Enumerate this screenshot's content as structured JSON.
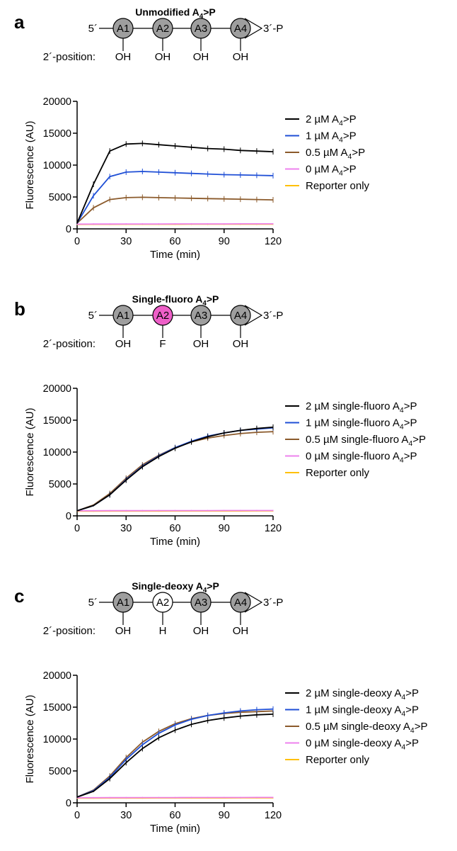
{
  "colors": {
    "2uM": "#000000",
    "1uM": "#1f4fd6",
    "0.5uM": "#8b5a2b",
    "0uM": "#ee82ee",
    "reporter": "#ffc000",
    "circle_gray": "#9e9e9e",
    "circle_pink": "#ee5fc8",
    "circle_white": "#ffffff"
  },
  "panels": [
    {
      "letter": "a",
      "title": "Unmodified A4>P",
      "molecule": {
        "five_prime": "5´",
        "three_prime": "3´-P",
        "position_label": "2´-position:",
        "nucleotides": [
          {
            "label": "A1",
            "sub": "OH",
            "fill": "gray"
          },
          {
            "label": "A2",
            "sub": "OH",
            "fill": "gray"
          },
          {
            "label": "A3",
            "sub": "OH",
            "fill": "gray"
          },
          {
            "label": "A4",
            "sub": "OH",
            "fill": "gray"
          }
        ]
      }
    },
    {
      "letter": "b",
      "title": "Single-fluoro A4>P",
      "molecule": {
        "five_prime": "5´",
        "three_prime": "3´-P",
        "position_label": "2´-position:",
        "nucleotides": [
          {
            "label": "A1",
            "sub": "OH",
            "fill": "gray"
          },
          {
            "label": "A2",
            "sub": "F",
            "fill": "pink"
          },
          {
            "label": "A3",
            "sub": "OH",
            "fill": "gray"
          },
          {
            "label": "A4",
            "sub": "OH",
            "fill": "gray"
          }
        ]
      }
    },
    {
      "letter": "c",
      "title": "Single-deoxy A4>P",
      "molecule": {
        "five_prime": "5´",
        "three_prime": "3´-P",
        "position_label": "2´-position:",
        "nucleotides": [
          {
            "label": "A1",
            "sub": "OH",
            "fill": "gray"
          },
          {
            "label": "A2",
            "sub": "H",
            "fill": "white"
          },
          {
            "label": "A3",
            "sub": "OH",
            "fill": "gray"
          },
          {
            "label": "A4",
            "sub": "OH",
            "fill": "gray"
          }
        ]
      }
    }
  ],
  "chart_data": [
    {
      "type": "line",
      "xlabel": "Time (min)",
      "ylabel": "Fluorescence (AU)",
      "xlim": [
        0,
        120
      ],
      "ylim": [
        0,
        20000
      ],
      "xticks": [
        0,
        30,
        60,
        90,
        120
      ],
      "yticks": [
        0,
        5000,
        10000,
        15000,
        20000
      ],
      "x": [
        0,
        10,
        20,
        30,
        40,
        50,
        60,
        70,
        80,
        90,
        100,
        110,
        120
      ],
      "series": [
        {
          "name": "2 µM A4>P",
          "color_key": "2uM",
          "values": [
            900,
            7000,
            12200,
            13300,
            13400,
            13200,
            13000,
            12800,
            12600,
            12500,
            12300,
            12200,
            12100
          ]
        },
        {
          "name": "1 µM A4>P",
          "color_key": "1uM",
          "values": [
            900,
            5200,
            8200,
            8900,
            9000,
            8900,
            8800,
            8700,
            8600,
            8500,
            8450,
            8400,
            8350
          ]
        },
        {
          "name": "0.5 µM A4>P",
          "color_key": "0.5uM",
          "values": [
            900,
            3300,
            4600,
            4900,
            4950,
            4900,
            4850,
            4800,
            4750,
            4700,
            4650,
            4600,
            4550
          ]
        },
        {
          "name": "0 µM A4>P",
          "color_key": "0uM",
          "values": [
            750,
            760,
            760,
            770,
            770,
            770,
            780,
            780,
            780,
            780,
            790,
            790,
            790
          ]
        },
        {
          "name": "Reporter only",
          "color_key": "reporter",
          "values": [
            700,
            710,
            710,
            720,
            720,
            720,
            720,
            730,
            730,
            730,
            730,
            730,
            730
          ]
        }
      ]
    },
    {
      "type": "line",
      "xlabel": "Time (min)",
      "ylabel": "Fluorescence (AU)",
      "xlim": [
        0,
        120
      ],
      "ylim": [
        0,
        20000
      ],
      "xticks": [
        0,
        30,
        60,
        90,
        120
      ],
      "yticks": [
        0,
        5000,
        10000,
        15000,
        20000
      ],
      "x": [
        0,
        10,
        20,
        30,
        40,
        50,
        60,
        70,
        80,
        90,
        100,
        110,
        120
      ],
      "series": [
        {
          "name": "2 µM single-fluoro A4>P",
          "color_key": "2uM",
          "values": [
            800,
            1600,
            3300,
            5600,
            7700,
            9300,
            10600,
            11600,
            12400,
            13000,
            13400,
            13700,
            13900
          ]
        },
        {
          "name": "1 µM single-fluoro A4>P",
          "color_key": "1uM",
          "values": [
            800,
            1600,
            3300,
            5700,
            7800,
            9400,
            10700,
            11700,
            12500,
            13000,
            13400,
            13600,
            13800
          ]
        },
        {
          "name": "0.5 µM single-fluoro A4>P",
          "color_key": "0.5uM",
          "values": [
            800,
            1700,
            3500,
            5900,
            8000,
            9500,
            10700,
            11600,
            12200,
            12600,
            12900,
            13100,
            13200
          ]
        },
        {
          "name": "0 µM single-fluoro A4>P",
          "color_key": "0uM",
          "values": [
            800,
            800,
            810,
            810,
            810,
            820,
            820,
            820,
            820,
            830,
            830,
            830,
            830
          ]
        },
        {
          "name": "Reporter only",
          "color_key": "reporter",
          "values": [
            750,
            750,
            760,
            760,
            760,
            760,
            770,
            770,
            770,
            770,
            770,
            780,
            780
          ]
        }
      ]
    },
    {
      "type": "line",
      "xlabel": "Time (min)",
      "ylabel": "Fluorescence (AU)",
      "xlim": [
        0,
        120
      ],
      "ylim": [
        0,
        20000
      ],
      "xticks": [
        0,
        30,
        60,
        90,
        120
      ],
      "yticks": [
        0,
        5000,
        10000,
        15000,
        20000
      ],
      "x": [
        0,
        10,
        20,
        30,
        40,
        50,
        60,
        70,
        80,
        90,
        100,
        110,
        120
      ],
      "series": [
        {
          "name": "2 µM single-deoxy A4>P",
          "color_key": "2uM",
          "values": [
            900,
            1800,
            3800,
            6300,
            8500,
            10200,
            11400,
            12300,
            12900,
            13300,
            13600,
            13800,
            13900
          ]
        },
        {
          "name": "1 µM single-deoxy A4>P",
          "color_key": "1uM",
          "values": [
            900,
            1900,
            4000,
            6800,
            9100,
            10900,
            12200,
            13100,
            13700,
            14100,
            14400,
            14600,
            14700
          ]
        },
        {
          "name": "0.5 µM single-deoxy A4>P",
          "color_key": "0.5uM",
          "values": [
            900,
            2000,
            4200,
            7100,
            9500,
            11200,
            12400,
            13200,
            13700,
            14000,
            14200,
            14300,
            14400
          ]
        },
        {
          "name": "0 µM single-deoxy A4>P",
          "color_key": "0uM",
          "values": [
            800,
            800,
            810,
            810,
            820,
            820,
            820,
            830,
            830,
            830,
            830,
            840,
            840
          ]
        },
        {
          "name": "Reporter only",
          "color_key": "reporter",
          "values": [
            750,
            750,
            760,
            760,
            760,
            770,
            770,
            770,
            770,
            770,
            780,
            780,
            780
          ]
        }
      ]
    }
  ]
}
